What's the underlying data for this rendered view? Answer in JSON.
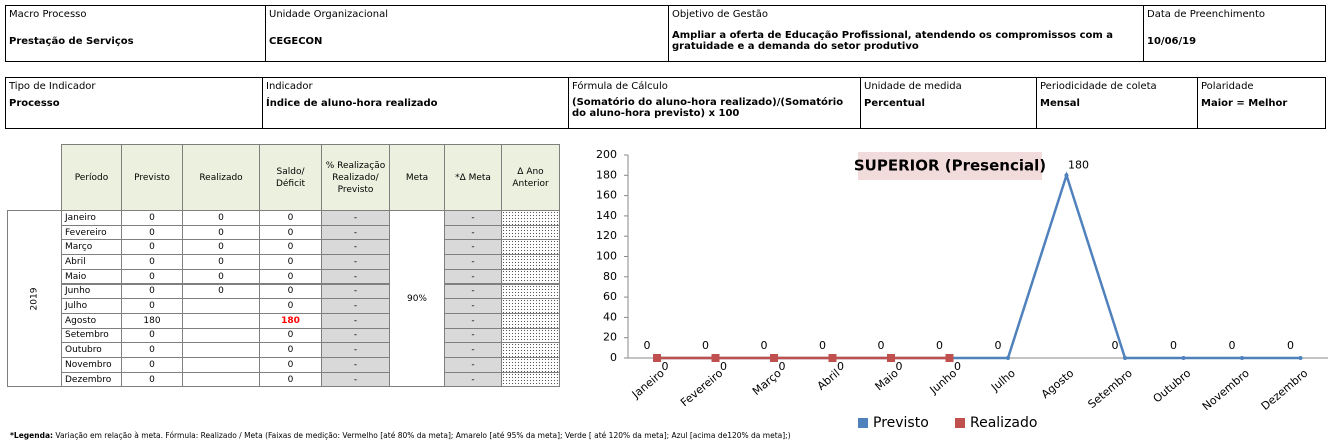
{
  "header1": [
    {
      "label": "Macro Processo",
      "value": "Prestação de Serviços"
    },
    {
      "label": "Unidade Organizacional",
      "value": "CEGECON"
    },
    {
      "label": "Objetivo de Gestão",
      "value": "Ampliar a oferta de Educação Profissional, atendendo os compromissos com a gratuidade e a demanda do setor produtivo"
    },
    {
      "label": "Data de Preenchimento",
      "value": "10/06/19"
    }
  ],
  "header2": [
    {
      "label": "Tipo de Indicador",
      "value": "Processo"
    },
    {
      "label": "Indicador",
      "value": "Índice de aluno-hora realizado"
    },
    {
      "label": "Fórmula  de Cálculo",
      "value": "(Somatório do aluno-hora realizado)/(Somatório do aluno-hora previsto) x 100"
    },
    {
      "label": "Unidade de medida",
      "value": "Percentual"
    },
    {
      "label": "Periodicidade de coleta",
      "value": "Mensal"
    },
    {
      "label": "Polaridade",
      "value": "Maior = Melhor"
    }
  ],
  "table": {
    "columns": [
      "Período",
      "Previsto",
      "Realizado",
      "Saldo/ Déficit",
      "% Realização Realizado/ Previsto",
      "Meta",
      "*Δ Meta",
      "Δ Ano Anterior"
    ],
    "year": "2019",
    "meta": "90%",
    "alert_cell": {
      "row": 7,
      "col": 3,
      "color": "#ff0000"
    },
    "rows": [
      [
        "Janeiro",
        "0",
        "0",
        "0",
        "-",
        "-"
      ],
      [
        "Fevereiro",
        "0",
        "0",
        "0",
        "-",
        "-"
      ],
      [
        "Março",
        "0",
        "0",
        "0",
        "-",
        "-"
      ],
      [
        "Abril",
        "0",
        "0",
        "0",
        "-",
        "-"
      ],
      [
        "Maio",
        "0",
        "0",
        "0",
        "-",
        "-"
      ],
      [
        "Junho",
        "0",
        "0",
        "0",
        "-",
        "-"
      ],
      [
        "Julho",
        "0",
        null,
        "0",
        "-",
        "-"
      ],
      [
        "Agosto",
        "180",
        null,
        "180",
        "-",
        "-"
      ],
      [
        "Setembro",
        "0",
        null,
        "0",
        "-",
        "-"
      ],
      [
        "Outubro",
        "0",
        null,
        "0",
        "-",
        "-"
      ],
      [
        "Novembro",
        "0",
        null,
        "0",
        "-",
        "-"
      ],
      [
        "Dezembro",
        "0",
        null,
        "0",
        "-",
        "-"
      ]
    ]
  },
  "chart_data": {
    "type": "line",
    "title": "SUPERIOR (Presencial)",
    "categories": [
      "Janeiro",
      "Fevereiro",
      "Março",
      "Abril",
      "Maio",
      "Junho",
      "Julho",
      "Agosto",
      "Setembro",
      "Outubro",
      "Novembro",
      "Dezembro"
    ],
    "series": [
      {
        "name": "Previsto",
        "color": "#4f81bd",
        "values": [
          0,
          0,
          0,
          0,
          0,
          0,
          0,
          180,
          0,
          0,
          0,
          0
        ]
      },
      {
        "name": "Realizado",
        "color": "#c0504d",
        "values": [
          0,
          0,
          0,
          0,
          0,
          0,
          null,
          null,
          null,
          null,
          null,
          null
        ]
      }
    ],
    "ylim": [
      0,
      200
    ],
    "yticks": [
      0,
      20,
      40,
      60,
      80,
      100,
      120,
      140,
      160,
      180,
      200
    ],
    "legend": "bottom"
  },
  "footnote": {
    "label": "*Legenda:",
    "text": "Variação em relação à meta. Fórmula: Realizado / Meta (Faixas de medição: Vermelho [até 80% da meta]; Amarelo [até 95% da meta]; Verde [ até 120% da meta]; Azul [acima de120% da meta];)"
  }
}
